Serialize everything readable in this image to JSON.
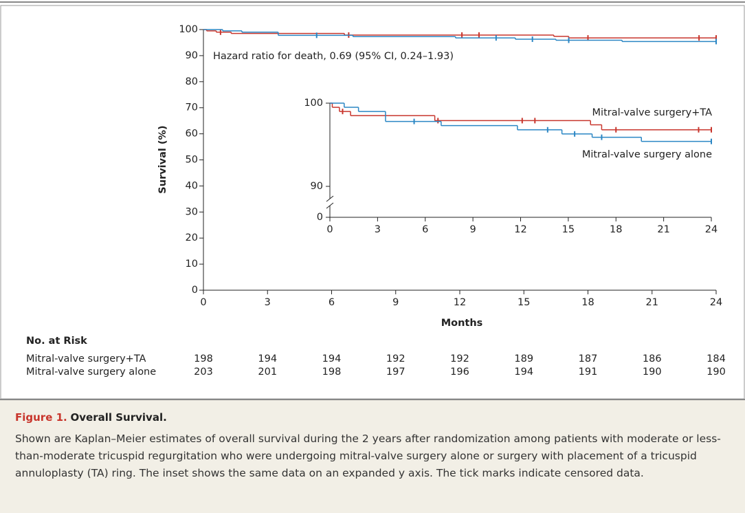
{
  "chart_data": {
    "type": "step",
    "x_label": "Months",
    "y_label": "Survival (%)",
    "annotation": "Hazard ratio for death, 0.69 (95% CI, 0.24–1.93)",
    "xlim": [
      0,
      24
    ],
    "xticks": [
      0,
      3,
      6,
      9,
      12,
      15,
      18,
      21,
      24
    ],
    "ylim": [
      0,
      100
    ],
    "yticks": [
      0,
      10,
      20,
      30,
      40,
      50,
      60,
      70,
      80,
      90,
      100
    ],
    "series": [
      {
        "name": "Mitral-valve surgery+TA",
        "color": "#c8352c",
        "x": [
          0,
          0.15,
          0.6,
          1.3,
          6.6,
          16.4,
          17.1
        ],
        "values": [
          100,
          99.5,
          99.0,
          98.5,
          97.9,
          97.4,
          96.8
        ],
        "censored": [
          0.8,
          6.8,
          12.1,
          12.9,
          18,
          23.2,
          24
        ]
      },
      {
        "name": "Mitral-valve surgery alone",
        "color": "#2a86c4",
        "x": [
          0,
          0.9,
          1.8,
          3.5,
          7.0,
          11.8,
          14.6,
          16.5,
          19.6
        ],
        "values": [
          100,
          99.5,
          99.0,
          97.8,
          97.3,
          96.8,
          96.3,
          95.9,
          95.4
        ],
        "censored": [
          5.3,
          13.7,
          15.4,
          17.1,
          24
        ]
      }
    ],
    "inset": {
      "ylim": [
        90,
        100
      ],
      "yticks": [
        90,
        100
      ],
      "break_tick": 0
    },
    "at_risk": {
      "title": "No. at Risk",
      "counts": [
        [
          198,
          194,
          194,
          192,
          192,
          189,
          187,
          186,
          184
        ],
        [
          203,
          201,
          198,
          197,
          196,
          194,
          191,
          190,
          190
        ]
      ]
    }
  },
  "caption": {
    "label": "Figure 1.",
    "title": "Overall Survival.",
    "text": "Shown are Kaplan–Meier estimates of overall survival during the 2 years after randomization among patients with moderate or less-than-moderate tricuspid regurgitation who were undergoing mitral-valve surgery alone or surgery with placement of a tricuspid annuloplasty (TA) ring. The inset shows the same data on an expanded y axis. The tick marks indicate censored data."
  }
}
